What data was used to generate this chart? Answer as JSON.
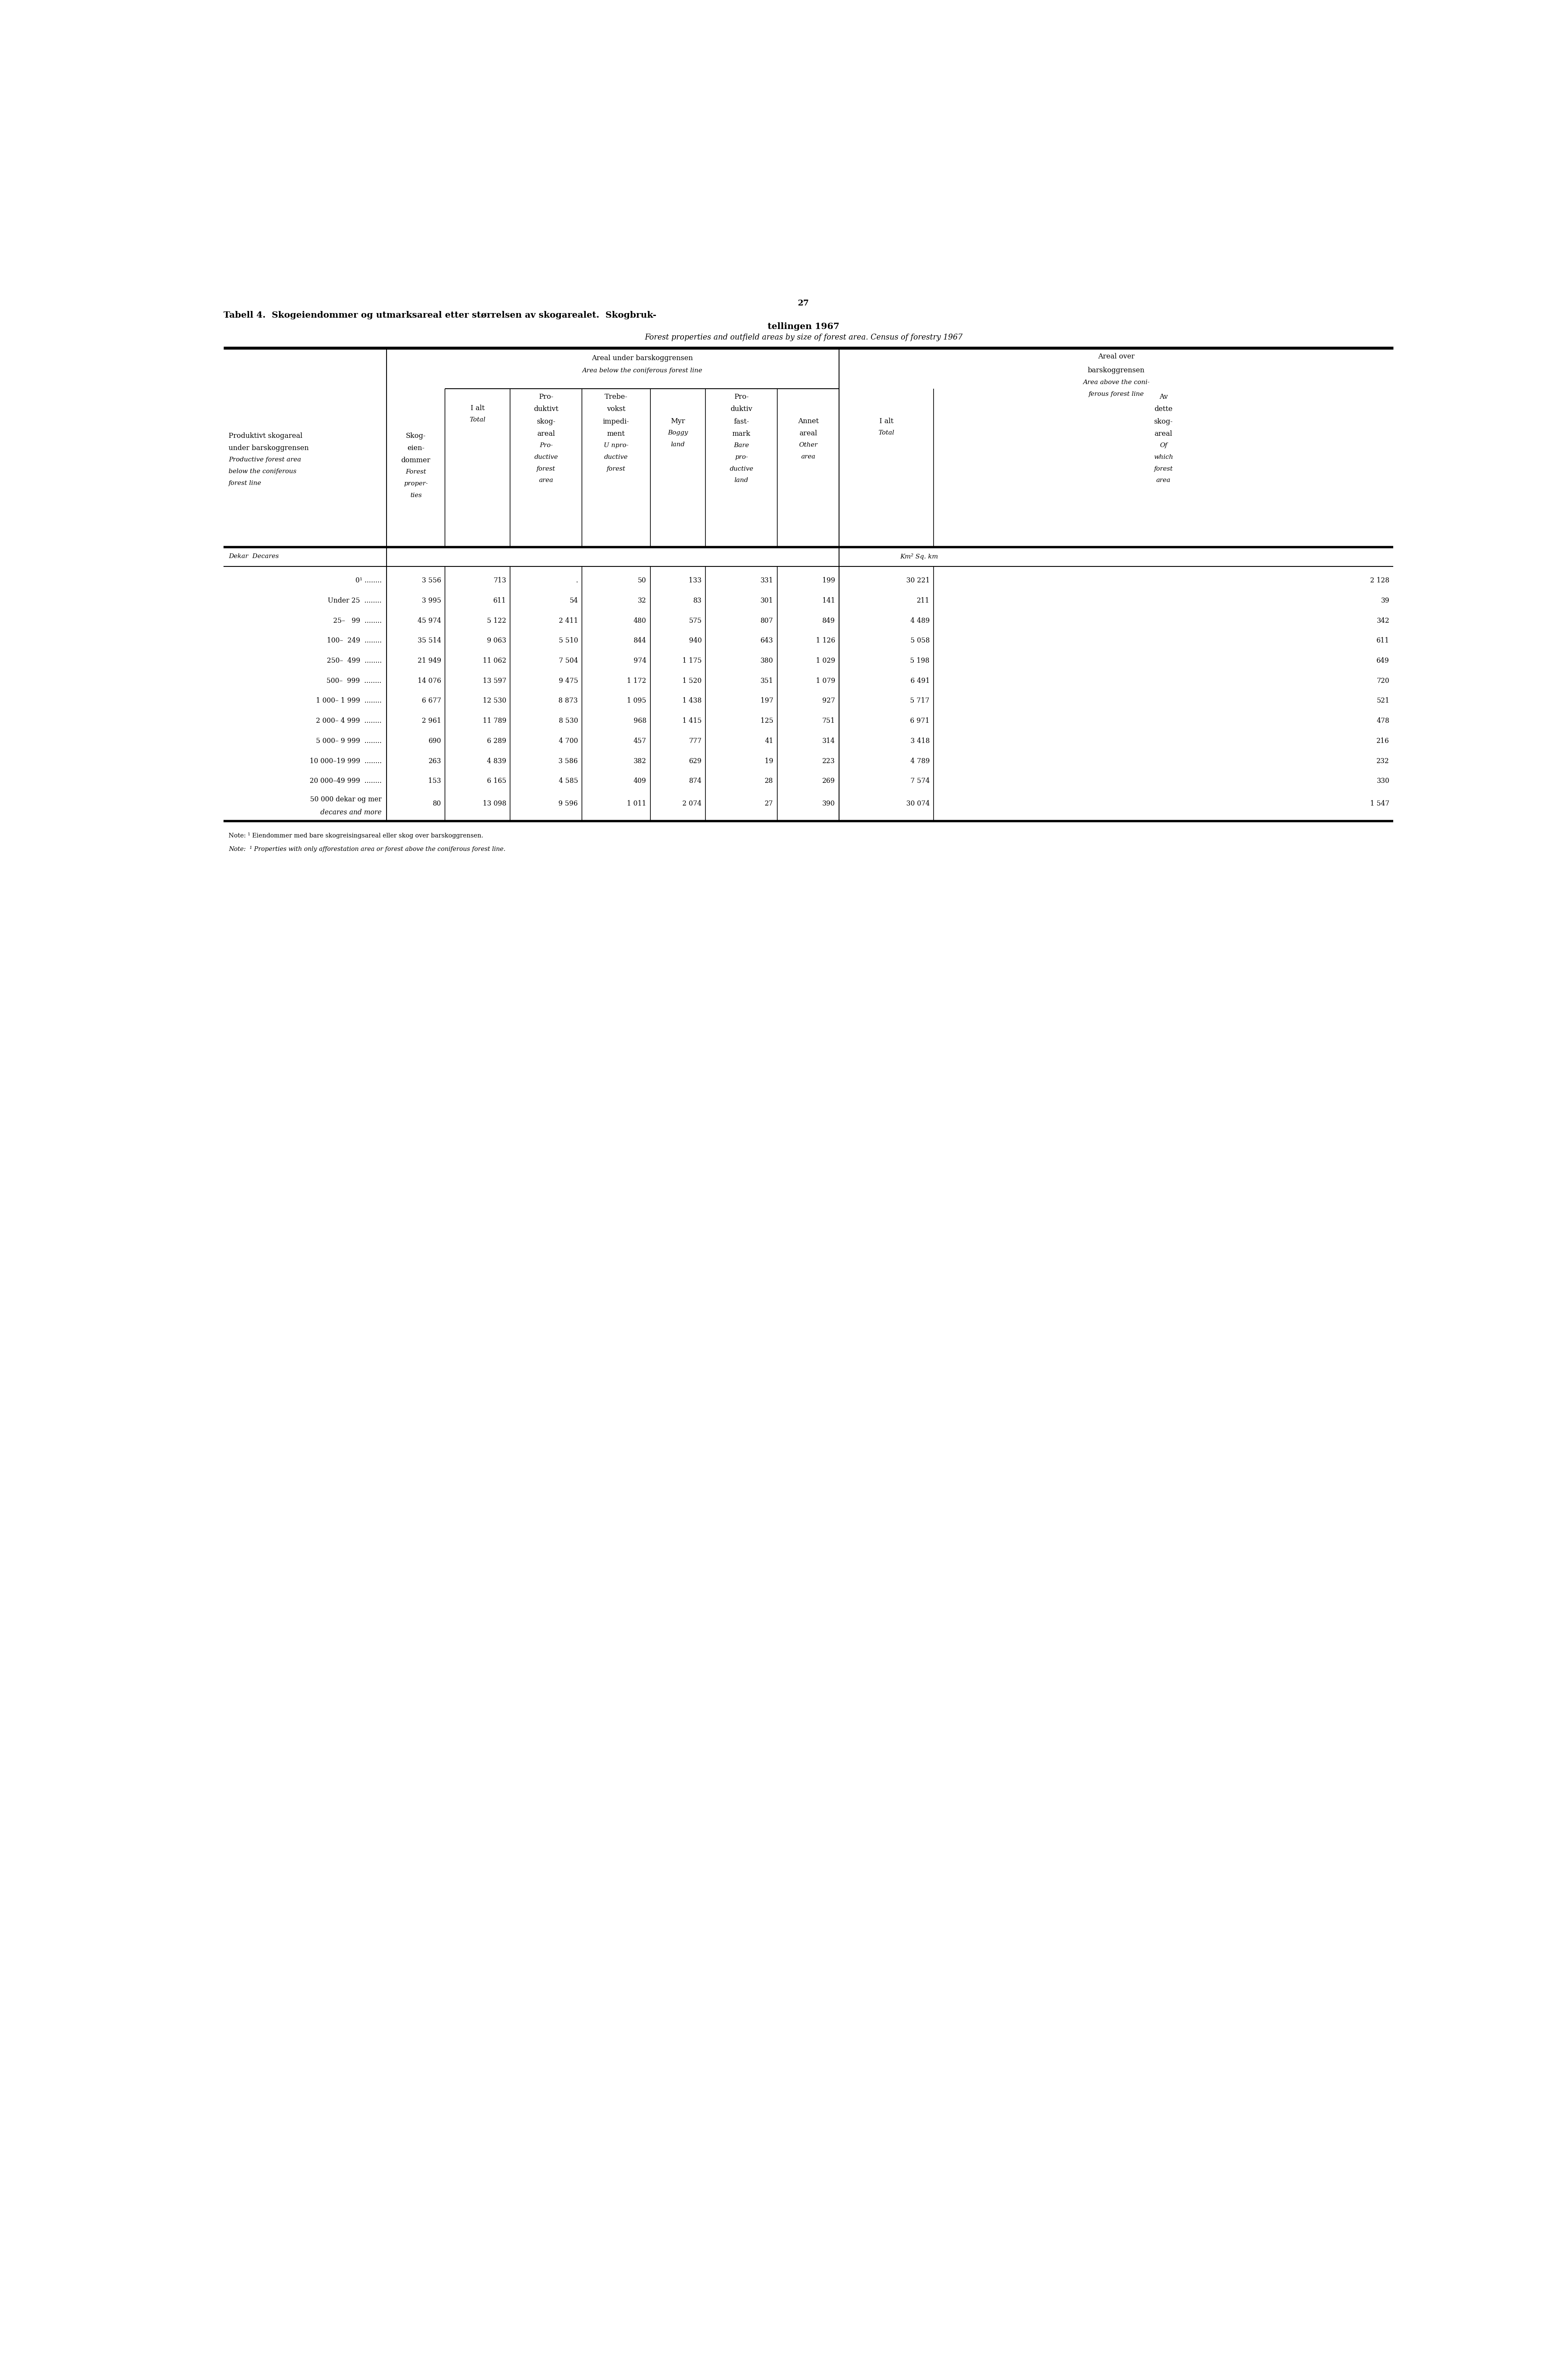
{
  "page_number": "27",
  "title_bold_line1": "Tabell 4.  Skogeiendommer og utmarksareal etter størrelsen av skogarealet.  Skogbruk-",
  "title_bold_line2": "tellingen 1967",
  "title_italic": "Forest properties and outfield areas by size of forest area. Census of forestry 1967",
  "rows": [
    {
      "label1": "0¹ ........",
      "label2": "",
      "c1": "3 556",
      "c2": "713",
      "c3": ".",
      "c4": "50",
      "c5": "133",
      "c6": "331",
      "c7": "199",
      "c8": "30 221",
      "c9": "2 128"
    },
    {
      "label1": "Under 25  ........",
      "label2": "",
      "c1": "3 995",
      "c2": "611",
      "c3": "54",
      "c4": "32",
      "c5": "83",
      "c6": "301",
      "c7": "141",
      "c8": "211",
      "c9": "39"
    },
    {
      "label1": "25–   99  ........",
      "label2": "",
      "c1": "45 974",
      "c2": "5 122",
      "c3": "2 411",
      "c4": "480",
      "c5": "575",
      "c6": "807",
      "c7": "849",
      "c8": "4 489",
      "c9": "342"
    },
    {
      "label1": "100–  249  ........",
      "label2": "",
      "c1": "35 514",
      "c2": "9 063",
      "c3": "5 510",
      "c4": "844",
      "c5": "940",
      "c6": "643",
      "c7": "1 126",
      "c8": "5 058",
      "c9": "611"
    },
    {
      "label1": "250–  499  ........",
      "label2": "",
      "c1": "21 949",
      "c2": "11 062",
      "c3": "7 504",
      "c4": "974",
      "c5": "1 175",
      "c6": "380",
      "c7": "1 029",
      "c8": "5 198",
      "c9": "649"
    },
    {
      "label1": "500–  999  ........",
      "label2": "",
      "c1": "14 076",
      "c2": "13 597",
      "c3": "9 475",
      "c4": "1 172",
      "c5": "1 520",
      "c6": "351",
      "c7": "1 079",
      "c8": "6 491",
      "c9": "720"
    },
    {
      "label1": "1 000– 1 999  ........",
      "label2": "",
      "c1": "6 677",
      "c2": "12 530",
      "c3": "8 873",
      "c4": "1 095",
      "c5": "1 438",
      "c6": "197",
      "c7": "927",
      "c8": "5 717",
      "c9": "521"
    },
    {
      "label1": "2 000– 4 999  ........",
      "label2": "",
      "c1": "2 961",
      "c2": "11 789",
      "c3": "8 530",
      "c4": "968",
      "c5": "1 415",
      "c6": "125",
      "c7": "751",
      "c8": "6 971",
      "c9": "478"
    },
    {
      "label1": "5 000– 9 999  ........",
      "label2": "",
      "c1": "690",
      "c2": "6 289",
      "c3": "4 700",
      "c4": "457",
      "c5": "777",
      "c6": "41",
      "c7": "314",
      "c8": "3 418",
      "c9": "216"
    },
    {
      "label1": "10 000–19 999  ........",
      "label2": "",
      "c1": "263",
      "c2": "4 839",
      "c3": "3 586",
      "c4": "382",
      "c5": "629",
      "c6": "19",
      "c7": "223",
      "c8": "4 789",
      "c9": "232"
    },
    {
      "label1": "20 000–49 999  ........",
      "label2": "",
      "c1": "153",
      "c2": "6 165",
      "c3": "4 585",
      "c4": "409",
      "c5": "874",
      "c6": "28",
      "c7": "269",
      "c8": "7 574",
      "c9": "330"
    },
    {
      "label1": "50 000 dekar og mer",
      "label2": "    decares and more",
      "c1": "80",
      "c2": "13 098",
      "c3": "9 596",
      "c4": "1 011",
      "c5": "2 074",
      "c6": "27",
      "c7": "390",
      "c8": "30 074",
      "c9": "1 547"
    }
  ],
  "note1_roman": "Note: ",
  "note1_super": "¹",
  "note1_rest": " Eiendommer med bare skogreisingsareal eller skog over barskoggrensen.",
  "note2_roman": "Note:  ",
  "note2_super": "¹",
  "note2_rest": " Properties with only afforestation area or forest above the coniferous forest line."
}
